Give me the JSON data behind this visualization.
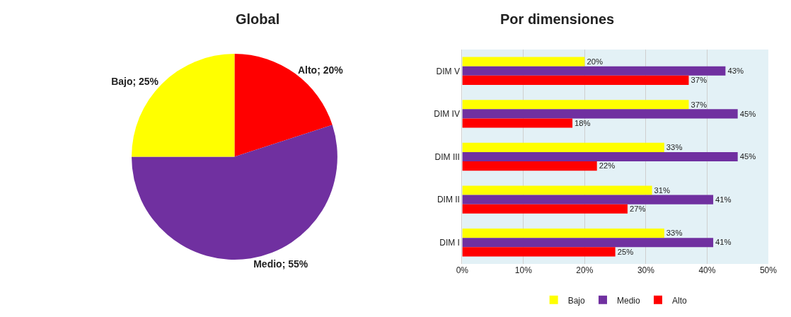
{
  "chart_data": [
    {
      "type": "pie",
      "title": "Global",
      "categories": [
        "Alto",
        "Medio",
        "Bajo"
      ],
      "values": [
        20,
        55,
        25
      ],
      "colors": [
        "#ff0000",
        "#7030a0",
        "#ffff00"
      ],
      "value_labels": [
        "20%",
        "55%",
        "25%"
      ]
    },
    {
      "type": "bar",
      "title": "Por dimensiones",
      "orientation": "horizontal",
      "categories": [
        "DIM V",
        "DIM IV",
        "DIM III",
        "DIM II",
        "DIM I"
      ],
      "series": [
        {
          "name": "Bajo",
          "color": "#ffff00",
          "values": [
            20,
            37,
            33,
            31,
            33
          ],
          "value_labels": [
            "20%",
            "37%",
            "33%",
            "31%",
            "33%"
          ]
        },
        {
          "name": "Medio",
          "color": "#7030a0",
          "values": [
            43,
            45,
            45,
            41,
            41
          ],
          "value_labels": [
            "43%",
            "45%",
            "45%",
            "41%",
            "41%"
          ]
        },
        {
          "name": "Alto",
          "color": "#ff0000",
          "values": [
            37,
            18,
            22,
            27,
            25
          ],
          "value_labels": [
            "37%",
            "18%",
            "22%",
            "27%",
            "25%"
          ]
        }
      ],
      "xlim": [
        0,
        50
      ],
      "xticks": [
        {
          "value": 0,
          "label": "0%"
        },
        {
          "value": 10,
          "label": "10%"
        },
        {
          "value": 20,
          "label": "20%"
        },
        {
          "value": 30,
          "label": "30%"
        },
        {
          "value": 40,
          "label": "40%"
        },
        {
          "value": 50,
          "label": "50%"
        }
      ],
      "grid": "x",
      "legend": "bottom"
    }
  ]
}
